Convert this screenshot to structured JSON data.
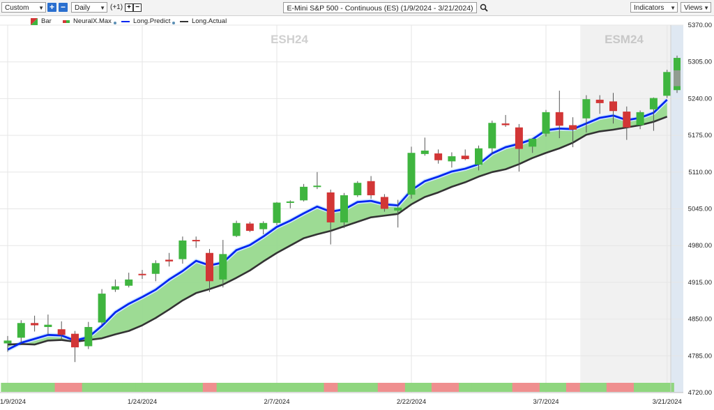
{
  "toolbar": {
    "period_select": "Custom",
    "interval_select": "Daily",
    "offset_label": "(+1)",
    "symbol_search": "E-Mini S&P 500 - Continuous (ES) (1/9/2024 - 3/21/2024)",
    "indicators_label": "Indicators",
    "views_label": "Views",
    "plus_symbol": "+",
    "minus_symbol": "−",
    "search_icon": "magnifier-icon"
  },
  "legend": [
    {
      "label": "Bar",
      "icon": "candle-icon"
    },
    {
      "label": "NeuralX.Max",
      "icon": "neuralx-icon"
    },
    {
      "label": "Long.Predict",
      "icon": "line-icon",
      "color": "#0026f0"
    },
    {
      "label": "Long.Actual",
      "icon": "line-icon",
      "color": "#333333"
    }
  ],
  "colors": {
    "up": "#3fb53f",
    "down": "#d23636",
    "predict": "#0026f0",
    "actual": "#333333",
    "fill": "#98d98e",
    "ribbon_up": "#8fd67f",
    "ribbon_down": "#ef8f8f",
    "forecast_shade": "#f1f1f1"
  },
  "chart_data": {
    "type": "candlestick",
    "contract_labels": [
      "ESH24",
      "ESM24"
    ],
    "y_ticks": [
      "5370.00",
      "5305.00",
      "5240.00",
      "5175.00",
      "5110.00",
      "5045.00",
      "4980.00",
      "4915.00",
      "4850.00",
      "4785.00",
      "4720.00"
    ],
    "ylim": [
      4720,
      5370
    ],
    "x_tick_labels": [
      "1/9/2024",
      "1/24/2024",
      "2/7/2024",
      "2/22/2024",
      "3/7/2024",
      "3/21/2024"
    ],
    "x_tick_index": [
      0,
      10,
      20,
      30,
      40,
      49
    ],
    "contract_switch_index": 43,
    "bars": [
      {
        "o": 4807,
        "h": 4820,
        "l": 4792,
        "c": 4812
      },
      {
        "o": 4817,
        "h": 4848,
        "l": 4808,
        "c": 4843
      },
      {
        "o": 4843,
        "h": 4856,
        "l": 4828,
        "c": 4839
      },
      {
        "o": 4836,
        "h": 4858,
        "l": 4822,
        "c": 4840
      },
      {
        "o": 4832,
        "h": 4846,
        "l": 4812,
        "c": 4822
      },
      {
        "o": 4824,
        "h": 4829,
        "l": 4774,
        "c": 4800
      },
      {
        "o": 4802,
        "h": 4845,
        "l": 4797,
        "c": 4836
      },
      {
        "o": 4844,
        "h": 4903,
        "l": 4839,
        "c": 4895
      },
      {
        "o": 4902,
        "h": 4920,
        "l": 4898,
        "c": 4908
      },
      {
        "o": 4909,
        "h": 4932,
        "l": 4906,
        "c": 4920
      },
      {
        "o": 4930,
        "h": 4937,
        "l": 4921,
        "c": 4928
      },
      {
        "o": 4930,
        "h": 4954,
        "l": 4917,
        "c": 4949
      },
      {
        "o": 4955,
        "h": 4967,
        "l": 4943,
        "c": 4952
      },
      {
        "o": 4956,
        "h": 4996,
        "l": 4948,
        "c": 4989
      },
      {
        "o": 4990,
        "h": 4996,
        "l": 4976,
        "c": 4988
      },
      {
        "o": 4967,
        "h": 4974,
        "l": 4898,
        "c": 4917
      },
      {
        "o": 4920,
        "h": 4990,
        "l": 4906,
        "c": 4965
      },
      {
        "o": 4997,
        "h": 5024,
        "l": 4995,
        "c": 5020
      },
      {
        "o": 5019,
        "h": 5022,
        "l": 5004,
        "c": 5006
      },
      {
        "o": 5009,
        "h": 5023,
        "l": 5000,
        "c": 5020
      },
      {
        "o": 5020,
        "h": 5057,
        "l": 5016,
        "c": 5056
      },
      {
        "o": 5056,
        "h": 5060,
        "l": 5046,
        "c": 5058
      },
      {
        "o": 5060,
        "h": 5089,
        "l": 5058,
        "c": 5084
      },
      {
        "o": 5084,
        "h": 5110,
        "l": 5080,
        "c": 5086
      },
      {
        "o": 5074,
        "h": 5079,
        "l": 4982,
        "c": 5021
      },
      {
        "o": 5021,
        "h": 5073,
        "l": 5011,
        "c": 5069
      },
      {
        "o": 5069,
        "h": 5094,
        "l": 5066,
        "c": 5091
      },
      {
        "o": 5094,
        "h": 5103,
        "l": 5063,
        "c": 5069
      },
      {
        "o": 5066,
        "h": 5071,
        "l": 5040,
        "c": 5045
      },
      {
        "o": 5042,
        "h": 5061,
        "l": 5012,
        "c": 5047
      },
      {
        "o": 5070,
        "h": 5155,
        "l": 5063,
        "c": 5144
      },
      {
        "o": 5142,
        "h": 5171,
        "l": 5139,
        "c": 5148
      },
      {
        "o": 5143,
        "h": 5150,
        "l": 5125,
        "c": 5131
      },
      {
        "o": 5129,
        "h": 5145,
        "l": 5118,
        "c": 5138
      },
      {
        "o": 5139,
        "h": 5150,
        "l": 5131,
        "c": 5133
      },
      {
        "o": 5123,
        "h": 5157,
        "l": 5113,
        "c": 5152
      },
      {
        "o": 5152,
        "h": 5201,
        "l": 5141,
        "c": 5197
      },
      {
        "o": 5196,
        "h": 5211,
        "l": 5190,
        "c": 5193
      },
      {
        "o": 5189,
        "h": 5195,
        "l": 5111,
        "c": 5151
      },
      {
        "o": 5155,
        "h": 5170,
        "l": 5144,
        "c": 5169
      },
      {
        "o": 5178,
        "h": 5220,
        "l": 5173,
        "c": 5216
      },
      {
        "o": 5216,
        "h": 5254,
        "l": 5170,
        "c": 5192
      },
      {
        "o": 5193,
        "h": 5207,
        "l": 5154,
        "c": 5185
      },
      {
        "o": 5205,
        "h": 5246,
        "l": 5180,
        "c": 5239
      },
      {
        "o": 5238,
        "h": 5246,
        "l": 5213,
        "c": 5232
      },
      {
        "o": 5235,
        "h": 5250,
        "l": 5196,
        "c": 5218
      },
      {
        "o": 5217,
        "h": 5226,
        "l": 5167,
        "c": 5189
      },
      {
        "o": 5193,
        "h": 5219,
        "l": 5186,
        "c": 5216
      },
      {
        "o": 5221,
        "h": 5242,
        "l": 5183,
        "c": 5241
      },
      {
        "o": 5245,
        "h": 5291,
        "l": 5241,
        "c": 5287
      }
    ],
    "forecast_candle": {
      "o": 5255,
      "c": 5312,
      "h": 5316,
      "l": 5250
    },
    "series": [
      {
        "name": "Long.Predict",
        "values": [
          4796,
          4808,
          4815,
          4822,
          4821,
          4812,
          4818,
          4838,
          4862,
          4877,
          4889,
          4902,
          4920,
          4935,
          4953,
          4945,
          4950,
          4972,
          4981,
          4996,
          5013,
          5024,
          5037,
          5049,
          5040,
          5044,
          5057,
          5059,
          5053,
          5051,
          5078,
          5094,
          5102,
          5111,
          5116,
          5124,
          5143,
          5154,
          5160,
          5168,
          5184,
          5187,
          5186,
          5196,
          5206,
          5210,
          5202,
          5206,
          5215,
          5238
        ]
      },
      {
        "name": "Long.Actual",
        "values": [
          4805,
          4806,
          4805,
          4812,
          4813,
          4810,
          4813,
          4816,
          4823,
          4829,
          4839,
          4852,
          4867,
          4883,
          4896,
          4903,
          4911,
          4923,
          4936,
          4952,
          4967,
          4980,
          4993,
          5000,
          5006,
          5014,
          5022,
          5030,
          5033,
          5036,
          5053,
          5066,
          5074,
          5084,
          5092,
          5102,
          5110,
          5115,
          5124,
          5135,
          5144,
          5152,
          5162,
          5176,
          5182,
          5185,
          5189,
          5193,
          5199,
          5208
        ]
      }
    ],
    "neuralx_ribbon": [
      "up",
      "up",
      "up",
      "up",
      "up",
      "up",
      "up",
      "up",
      "up",
      "up",
      "up",
      "up",
      "up",
      "up",
      "up",
      "up",
      "up",
      "up",
      "up",
      "up",
      "up",
      "up",
      "up",
      "up",
      "up",
      "up",
      "up",
      "up",
      "up",
      "up",
      "up",
      "up",
      "up",
      "up",
      "up",
      "up",
      "up",
      "up",
      "up",
      "up",
      "up",
      "up",
      "up",
      "up",
      "up",
      "up",
      "up",
      "up",
      "up",
      "up"
    ]
  }
}
